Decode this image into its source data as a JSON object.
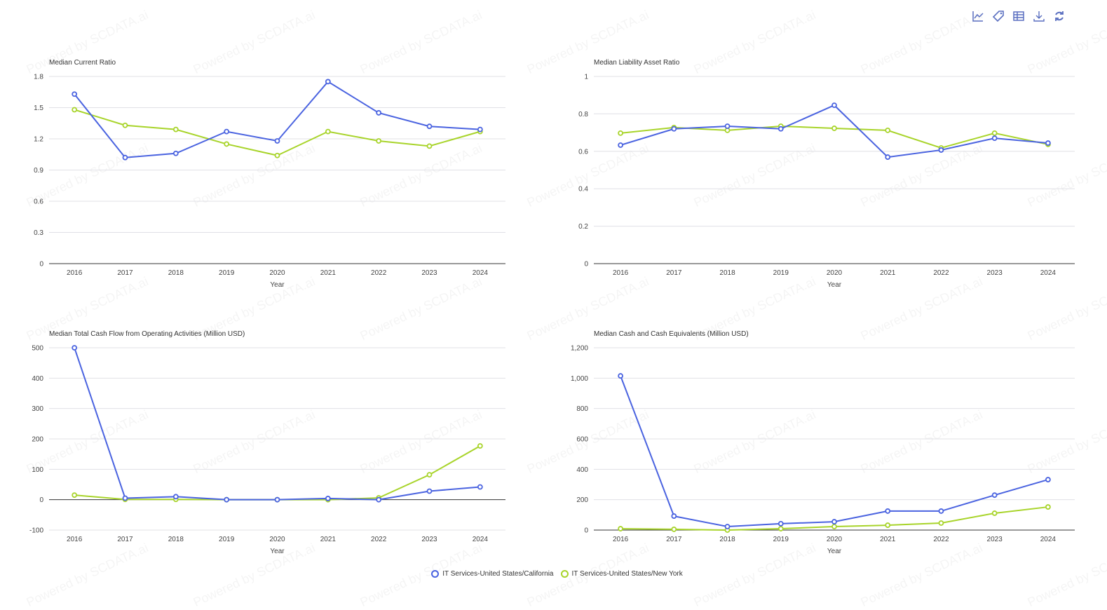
{
  "watermark": "Powered by SCDATA.ai",
  "toolbar": [
    "line-chart-icon",
    "tag-icon",
    "table-icon",
    "download-icon",
    "refresh-icon"
  ],
  "colors": {
    "california": "#4a63e0",
    "new_york": "#a8d42a"
  },
  "legend": [
    "IT Services-United States/California",
    "IT Services-United States/New York"
  ],
  "chart_data": [
    {
      "type": "line",
      "title": "Median Current Ratio",
      "xlabel": "Year",
      "ylim": [
        0,
        1.8
      ],
      "yticks": [
        "0",
        "0.3",
        "0.6",
        "0.9",
        "1.2",
        "1.5",
        "1.8"
      ],
      "ytickvals": [
        0,
        0.3,
        0.6,
        0.9,
        1.2,
        1.5,
        1.8
      ],
      "categories": [
        "2016",
        "2017",
        "2018",
        "2019",
        "2020",
        "2021",
        "2022",
        "2023",
        "2024"
      ],
      "series": [
        {
          "name": "IT Services-United States/California",
          "values": [
            1.63,
            1.02,
            1.06,
            1.27,
            1.18,
            1.75,
            1.45,
            1.32,
            1.29
          ]
        },
        {
          "name": "IT Services-United States/New York",
          "values": [
            1.48,
            1.33,
            1.29,
            1.15,
            1.04,
            1.27,
            1.18,
            1.13,
            1.27
          ]
        }
      ]
    },
    {
      "type": "line",
      "title": "Median Liability Asset Ratio",
      "xlabel": "Year",
      "ylim": [
        0,
        1
      ],
      "yticks": [
        "0",
        "0.2",
        "0.4",
        "0.6",
        "0.8",
        "1"
      ],
      "ytickvals": [
        0,
        0.2,
        0.4,
        0.6,
        0.8,
        1
      ],
      "categories": [
        "2016",
        "2017",
        "2018",
        "2019",
        "2020",
        "2021",
        "2022",
        "2023",
        "2024"
      ],
      "series": [
        {
          "name": "IT Services-United States/California",
          "values": [
            0.633,
            0.72,
            0.734,
            0.72,
            0.846,
            0.569,
            0.607,
            0.67,
            0.644
          ]
        },
        {
          "name": "IT Services-United States/New York",
          "values": [
            0.697,
            0.727,
            0.712,
            0.734,
            0.723,
            0.712,
            0.618,
            0.697,
            0.637
          ]
        }
      ]
    },
    {
      "type": "line",
      "title": "Median Total Cash Flow from Operating Activities (Million USD)",
      "xlabel": "Year",
      "ylim": [
        -100,
        500
      ],
      "yticks": [
        "-100",
        "0",
        "100",
        "200",
        "300",
        "400",
        "500"
      ],
      "ytickvals": [
        -100,
        0,
        100,
        200,
        300,
        400,
        500
      ],
      "categories": [
        "2016",
        "2017",
        "2018",
        "2019",
        "2020",
        "2021",
        "2022",
        "2023",
        "2024"
      ],
      "series": [
        {
          "name": "IT Services-United States/California",
          "values": [
            500,
            5,
            10,
            0,
            0,
            4,
            0,
            28,
            42
          ]
        },
        {
          "name": "IT Services-United States/New York",
          "values": [
            15,
            1,
            1,
            0,
            0,
            0,
            6,
            82,
            177
          ]
        }
      ]
    },
    {
      "type": "line",
      "title": "Median Cash and Cash Equivalents (Million USD)",
      "xlabel": "Year",
      "ylim": [
        0,
        1200
      ],
      "yticks": [
        "0",
        "200",
        "400",
        "600",
        "800",
        "1,000",
        "1,200"
      ],
      "ytickvals": [
        0,
        200,
        400,
        600,
        800,
        1000,
        1200
      ],
      "categories": [
        "2016",
        "2017",
        "2018",
        "2019",
        "2020",
        "2021",
        "2022",
        "2023",
        "2024"
      ],
      "series": [
        {
          "name": "IT Services-United States/California",
          "values": [
            1015,
            92,
            23,
            42,
            55,
            125,
            125,
            230,
            332
          ]
        },
        {
          "name": "IT Services-United States/New York",
          "values": [
            9,
            5,
            0,
            9,
            23,
            32,
            46,
            111,
            152
          ]
        }
      ]
    }
  ]
}
